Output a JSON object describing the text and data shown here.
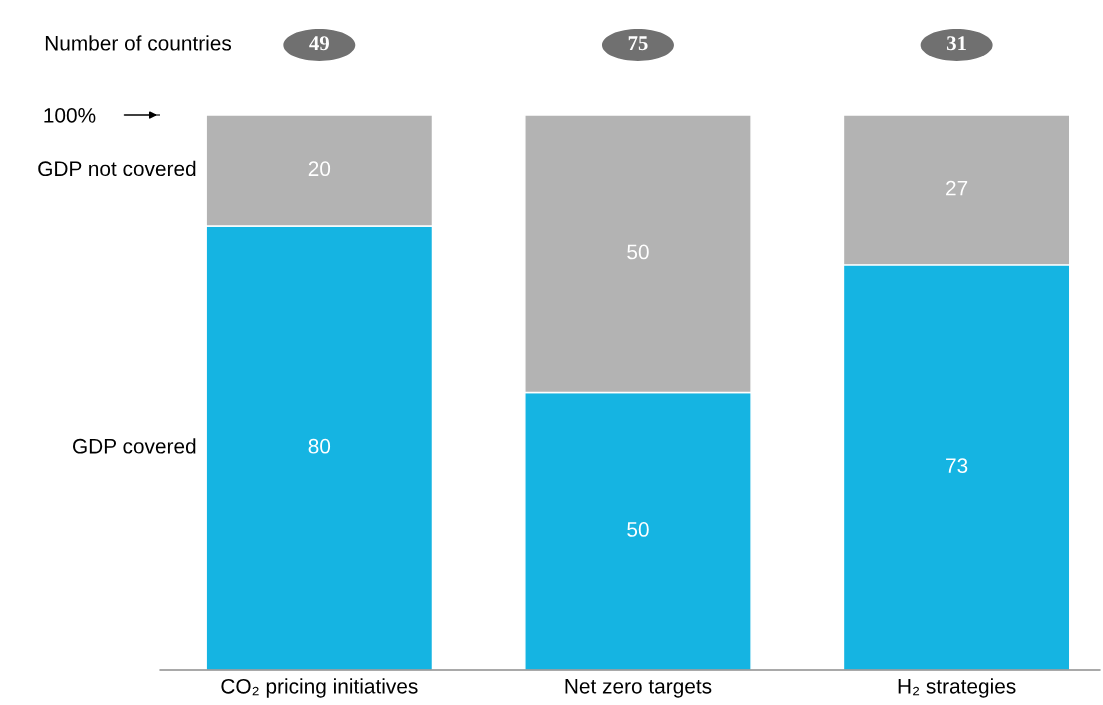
{
  "chart_data": {
    "type": "bar",
    "stacked": true,
    "categories": [
      "CO₂ pricing initiatives",
      "Net zero targets",
      "H₂ strategies"
    ],
    "series": [
      {
        "name": "GDP covered",
        "color": "#15b4e2",
        "values": [
          80,
          50,
          73
        ]
      },
      {
        "name": "GDP not covered",
        "color": "#b3b3b3",
        "values": [
          20,
          50,
          27
        ]
      }
    ],
    "ylim": [
      0,
      100
    ],
    "yticks": [
      {
        "value": 100,
        "label": "100%"
      }
    ],
    "data_labels": true,
    "annotations": [
      "Number of countries",
      "49",
      "75",
      "31"
    ]
  }
}
